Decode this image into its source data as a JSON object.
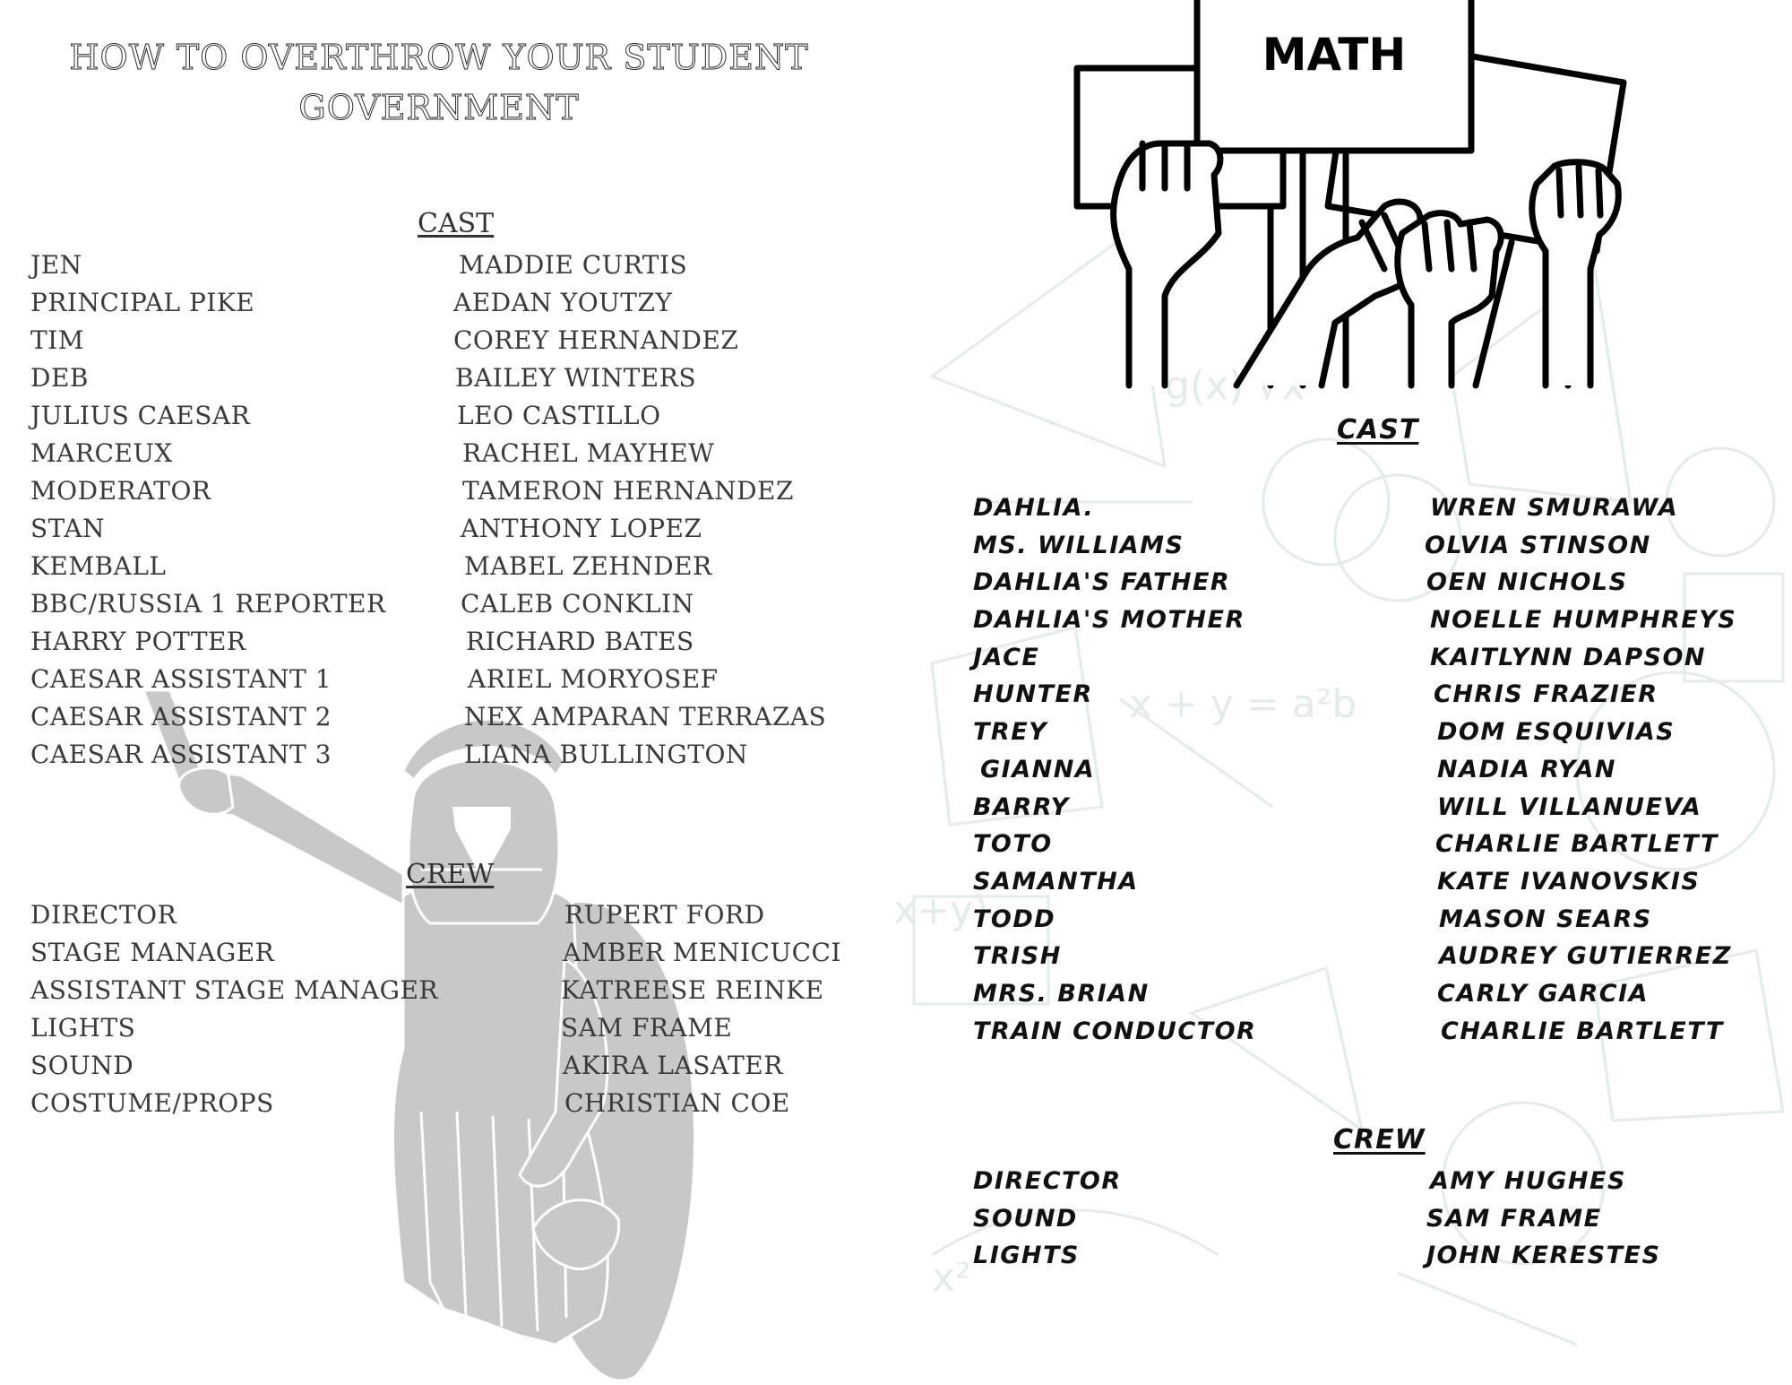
{
  "left_program": {
    "title_line1": "HOW TO OVERTHROW YOUR STUDENT",
    "title_line2": "GOVERNMENT",
    "cast_heading": "CAST",
    "cast": [
      {
        "role": "JEN",
        "name": "MADDIE CURTIS"
      },
      {
        "role": "PRINCIPAL PIKE",
        "name": "AEDAN YOUTZY"
      },
      {
        "role": "TIM",
        "name": "COREY HERNANDEZ"
      },
      {
        "role": "DEB",
        "name": "BAILEY WINTERS"
      },
      {
        "role": "JULIUS CAESAR",
        "name": "LEO CASTILLO"
      },
      {
        "role": "MARCEUX",
        "name": "RACHEL MAYHEW"
      },
      {
        "role": "MODERATOR",
        "name": "TAMERON HERNANDEZ"
      },
      {
        "role": "STAN",
        "name": "ANTHONY LOPEZ"
      },
      {
        "role": "KEMBALL",
        "name": "MABEL ZEHNDER"
      },
      {
        "role": "BBC/RUSSIA 1 REPORTER",
        "name": "CALEB CONKLIN"
      },
      {
        "role": "HARRY POTTER",
        "name": "RICHARD BATES"
      },
      {
        "role": "CAESAR ASSISTANT 1",
        "name": "ARIEL MORYOSEF"
      },
      {
        "role": "CAESAR ASSISTANT 2",
        "name": "NEX AMPARAN TERRAZAS"
      },
      {
        "role": "CAESAR ASSISTANT 3",
        "name": "LIANA BULLINGTON"
      }
    ],
    "crew_heading": "CREW",
    "crew": [
      {
        "role": "DIRECTOR",
        "name": "RUPERT FORD"
      },
      {
        "role": "STAGE MANAGER",
        "name": "AMBER MENICUCCI"
      },
      {
        "role": "ASSISTANT STAGE MANAGER",
        "name": "KATREESE REINKE"
      },
      {
        "role": "LIGHTS",
        "name": "SAM FRAME"
      },
      {
        "role": "SOUND",
        "name": "AKIRA LASATER"
      },
      {
        "role": "COSTUME/PROPS",
        "name": "CHRISTIAN COE"
      }
    ],
    "illustration": "spartan-warrior-icon"
  },
  "right_program": {
    "sign_text": "MATH",
    "illustration": "protest-fists-icon",
    "cast_heading": "CAST",
    "cast": [
      {
        "role": "DAHLIA.",
        "name": "WREN SMURAWA"
      },
      {
        "role": "MS. WILLIAMS",
        "name": "OLVIA STINSON"
      },
      {
        "role": "DAHLIA'S FATHER",
        "name": "OEN NICHOLS"
      },
      {
        "role": "DAHLIA'S MOTHER",
        "name": "NOELLE HUMPHREYS"
      },
      {
        "role": "JACE",
        "name": "KAITLYNN DAPSON"
      },
      {
        "role": "HUNTER",
        "name": "CHRIS FRAZIER"
      },
      {
        "role": "TREY",
        "name": "DOM ESQUIVIAS"
      },
      {
        "role": "GIANNA",
        "name": "NADIA RYAN"
      },
      {
        "role": "BARRY",
        "name": "WILL VILLANUEVA"
      },
      {
        "role": "TOTO",
        "name": "CHARLIE BARTLETT"
      },
      {
        "role": "SAMANTHA",
        "name": "KATE IVANOVSKIS"
      },
      {
        "role": "TODD",
        "name": "MASON SEARS"
      },
      {
        "role": "TRISH",
        "name": "AUDREY GUTIERREZ"
      },
      {
        "role": "MRS. BRIAN",
        "name": "CARLY GARCIA"
      },
      {
        "role": "TRAIN CONDUCTOR",
        "name": "CHARLIE BARTLETT"
      }
    ],
    "crew_heading": "CREW",
    "crew": [
      {
        "role": "DIRECTOR",
        "name": "AMY HUGHES"
      },
      {
        "role": "SOUND",
        "name": "SAM FRAME"
      },
      {
        "role": "LIGHTS",
        "name": "JOHN KERESTES"
      }
    ]
  },
  "colors": {
    "left_text": "#3a3a3a",
    "warrior_fill": "#c8c8c8",
    "right_text": "#111111",
    "math_background": "#e8f0ee"
  }
}
